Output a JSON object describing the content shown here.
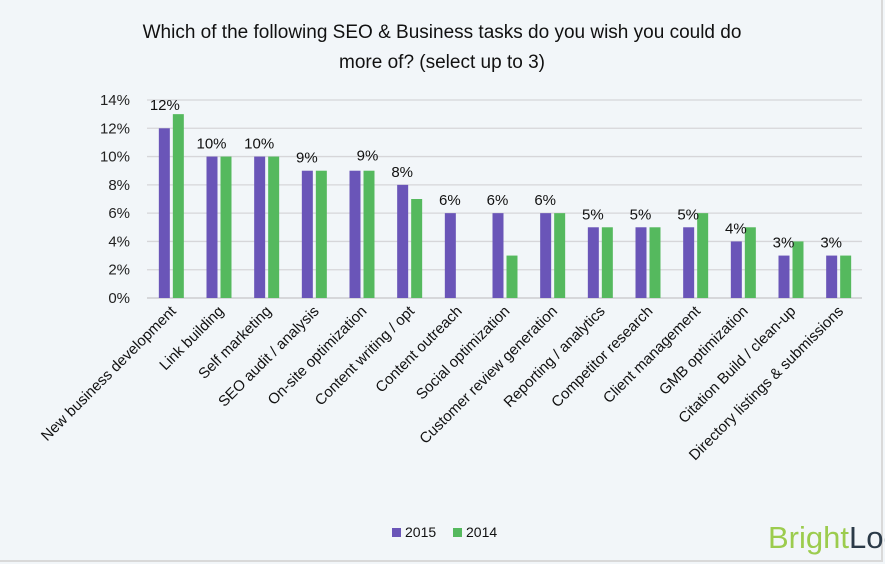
{
  "chart_data": {
    "type": "bar",
    "title": [
      "Which of the following SEO & Business tasks do you wish you could do",
      "more of? (select up to 3)"
    ],
    "xlabel": "",
    "ylabel": "",
    "ylim": [
      0,
      14
    ],
    "yticks": [
      "0%",
      "2%",
      "4%",
      "6%",
      "8%",
      "10%",
      "12%",
      "14%"
    ],
    "grid": true,
    "legend_position": "bottom",
    "categories": [
      "New business development",
      "Link building",
      "Self marketing",
      "SEO audit / analysis",
      "On-site optimization",
      "Content writing / opt",
      "Content outreach",
      "Social optimization",
      "Customer review generation",
      "Reporting / analytics",
      "Competitor research",
      "Client management",
      "GMB optimization",
      "Citation Build / clean-up",
      "Directory listings & submissions"
    ],
    "series": [
      {
        "name": "2015",
        "color": "#6a55b8",
        "values": [
          12,
          10,
          10,
          9,
          9,
          8,
          6,
          6,
          6,
          5,
          5,
          5,
          4,
          3,
          3
        ]
      },
      {
        "name": "2014",
        "color": "#55b95e",
        "values": [
          13,
          10,
          10,
          9,
          9,
          7,
          0,
          3,
          6,
          5,
          5,
          6,
          5,
          4,
          3
        ]
      }
    ],
    "data_labels": [
      "12%",
      "10%",
      "10%",
      "9%",
      "9%",
      "8%",
      "6%",
      "6%",
      "6%",
      "5%",
      "5%",
      "5%",
      "4%",
      "3%",
      "3%"
    ]
  },
  "logo": {
    "text_bright": "Bright",
    "text_local": "Local",
    "bright_color": "#9ccc4e",
    "local_color": "#2b3a48"
  }
}
